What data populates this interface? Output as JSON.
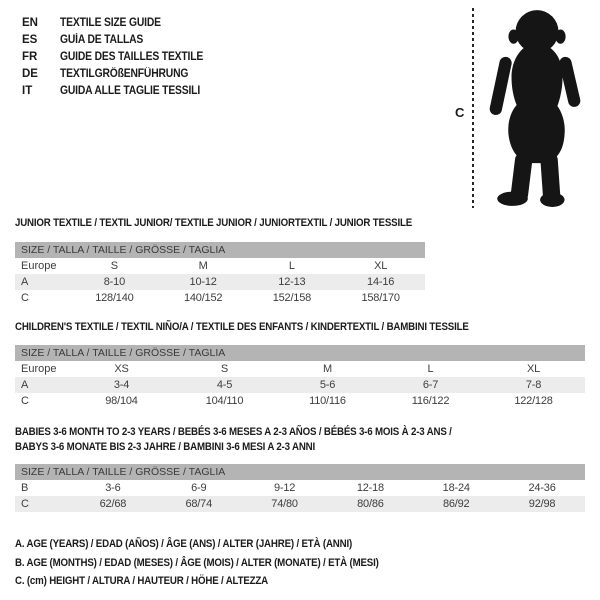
{
  "title_block": {
    "items": [
      {
        "code": "EN",
        "label": "TEXTILE SIZE GUIDE"
      },
      {
        "code": "ES",
        "label": "GUÍA DE TALLAS"
      },
      {
        "code": "FR",
        "label": "GUIDE DES TAILLES TEXTILE"
      },
      {
        "code": "DE",
        "label": "TEXTILGRÖßENFÜHRUNG"
      },
      {
        "code": "IT",
        "label": "GUIDA ALLE TAGLIE TESSILI"
      }
    ]
  },
  "figure": {
    "measure_label": "C",
    "silhouette": "baby-toddler-standing"
  },
  "sections": [
    {
      "heading_lines": [
        "JUNIOR TEXTILE / TEXTIL JUNIOR/ TEXTILE JUNIOR / JUNIORTEXTIL / JUNIOR TESSILE"
      ],
      "table": {
        "header": "SIZE / TALLA / TAILLE / GRÖSSE / TAGLIA",
        "rows": [
          {
            "label": "Europe",
            "cells": [
              "S",
              "M",
              "L",
              "XL"
            ],
            "shaded": false
          },
          {
            "label": "A",
            "cells": [
              "8-10",
              "10-12",
              "12-13",
              "14-16"
            ],
            "shaded": true
          },
          {
            "label": "C",
            "cells": [
              "128/140",
              "140/152",
              "152/158",
              "158/170"
            ],
            "shaded": false
          }
        ]
      }
    },
    {
      "heading_lines": [
        "CHILDREN'S TEXTILE / TEXTIL NIÑO/A / TEXTILE DES ENFANTS / KINDERTEXTIL / BAMBINI TESSILE"
      ],
      "table": {
        "header": "SIZE / TALLA / TAILLE / GRÖSSE / TAGLIA",
        "rows": [
          {
            "label": "Europe",
            "cells": [
              "XS",
              "S",
              "M",
              "L",
              "XL"
            ],
            "shaded": false
          },
          {
            "label": "A",
            "cells": [
              "3-4",
              "4-5",
              "5-6",
              "6-7",
              "7-8"
            ],
            "shaded": true
          },
          {
            "label": "C",
            "cells": [
              "98/104",
              "104/110",
              "110/116",
              "116/122",
              "122/128"
            ],
            "shaded": false
          }
        ]
      }
    },
    {
      "heading_lines": [
        "BABIES 3-6 MONTH TO 2-3 YEARS / BEBÉS 3-6 MESES A 2-3 AÑOS / BÉBÉS 3-6 MOIS À 2-3 ANS /",
        "BABYS 3-6 MONATE BIS 2-3 JAHRE / BAMBINI 3-6 MESI A 2-3 ANNI"
      ],
      "table": {
        "header": "SIZE / TALLA / TAILLE / GRÖSSE / TAGLIA",
        "rows": [
          {
            "label": "B",
            "cells": [
              "3-6",
              "6-9",
              "9-12",
              "12-18",
              "18-24",
              "24-36"
            ],
            "shaded": false
          },
          {
            "label": "C",
            "cells": [
              "62/68",
              "68/74",
              "74/80",
              "80/86",
              "86/92",
              "92/98"
            ],
            "shaded": true
          }
        ]
      }
    }
  ],
  "legend": {
    "items": [
      "A. AGE (YEARS) / EDAD (AÑOS) / ÂGE (ANS) / ALTER (JAHRE) / ETÀ (ANNI)",
      "B. AGE (MONTHS) / EDAD (MESES) / ÂGE (MOIS) / ALTER (MONATE) / ETÀ (MESI)",
      "C. (cm) HEIGHT / ALTURA / HAUTEUR / HÖHE / ALTEZZA"
    ]
  },
  "colors": {
    "table_header_bg": "#b4b4b4",
    "row_shaded_bg": "#ececec",
    "heading_text": "#1b1b1b",
    "table_text": "#3d3d3d",
    "silhouette": "#151515"
  }
}
